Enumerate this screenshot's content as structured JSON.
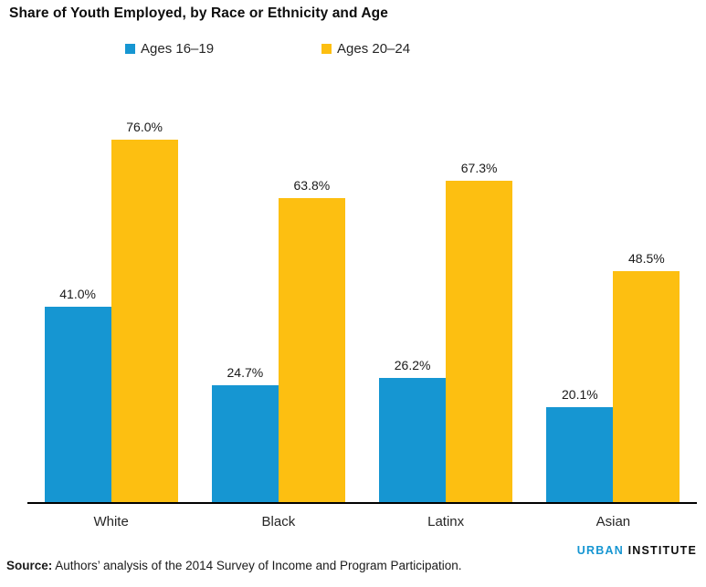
{
  "title": "Share of Youth Employed, by Race or Ethnicity and Age",
  "chart_data": {
    "type": "bar",
    "title": "Share of Youth Employed, by Race or Ethnicity and Age",
    "categories": [
      "White",
      "Black",
      "Latinx",
      "Asian"
    ],
    "series": [
      {
        "name": "Ages 16–19",
        "color": "#1696d2",
        "values": [
          41.0,
          24.7,
          26.2,
          20.1
        ],
        "labels": [
          "41.0%",
          "24.7%",
          "26.2%",
          "20.1%"
        ]
      },
      {
        "name": "Ages 20–24",
        "color": "#fdbf11",
        "values": [
          76.0,
          63.8,
          67.3,
          48.5
        ],
        "labels": [
          "76.0%",
          "63.8%",
          "67.3%",
          "48.5%"
        ]
      }
    ],
    "xlabel": "",
    "ylabel": "",
    "ylim": [
      0,
      87.8
    ],
    "grid": false,
    "y_axis_shown": false,
    "value_labels_shown": true,
    "legend_position": "top"
  },
  "footer": {
    "source_label": "Source:",
    "source_text": " Authors’ analysis of the 2014 Survey of Income and Program Participation.",
    "logo": {
      "part1": "URBAN",
      "part2": " INSTITUTE",
      "part1_color": "#1696d2",
      "part2_color": "#0d0d0d"
    }
  },
  "colors": {
    "axis": "#000000",
    "label_text": "#1a1a1a",
    "background": "#ffffff"
  }
}
